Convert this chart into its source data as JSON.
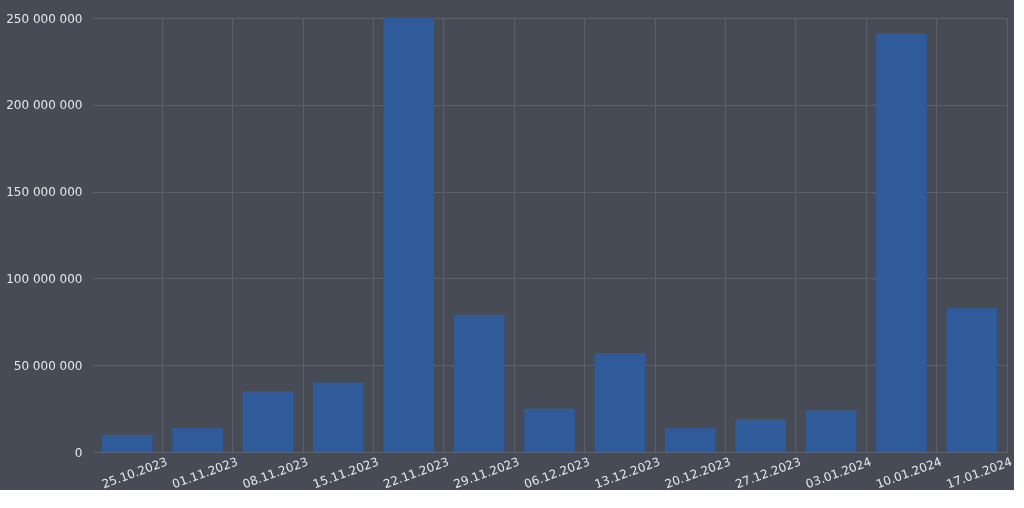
{
  "chart_data": {
    "type": "bar",
    "categories": [
      "25.10.2023",
      "01.11.2023",
      "08.11.2023",
      "15.11.2023",
      "22.11.2023",
      "29.11.2023",
      "06.12.2023",
      "13.12.2023",
      "20.12.2023",
      "27.12.2023",
      "03.01.2024",
      "10.01.2024",
      "17.01.2024"
    ],
    "values": [
      10000000,
      14000000,
      35000000,
      40000000,
      250000000,
      79000000,
      25000000,
      57000000,
      14000000,
      19000000,
      24000000,
      241000000,
      83000000
    ],
    "color": "#2f5b9a",
    "ylim": [
      0,
      250000000
    ],
    "yticks": [
      {
        "value": 0,
        "label": "0"
      },
      {
        "value": 50000000,
        "label": "50 000 000"
      },
      {
        "value": 100000000,
        "label": "100 000 000"
      },
      {
        "value": 150000000,
        "label": "150 000 000"
      },
      {
        "value": 200000000,
        "label": "200 000 000"
      },
      {
        "value": 250000000,
        "label": "250 000 000"
      }
    ],
    "grid": true
  }
}
